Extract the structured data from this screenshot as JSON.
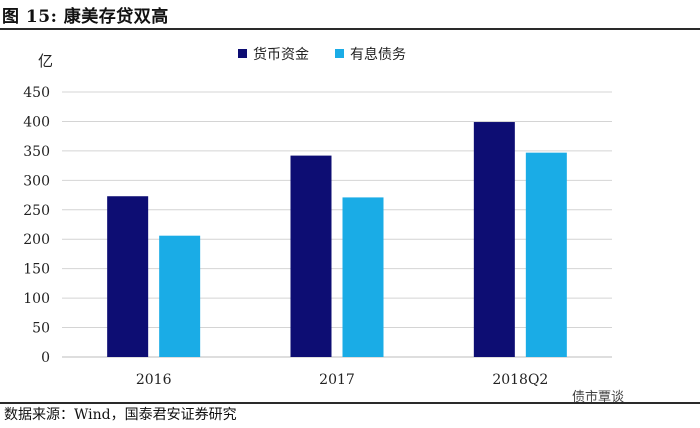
{
  "figure": {
    "title": "图 15: 康美存贷双高",
    "source": "数据来源：Wind，国泰君安证券研究",
    "watermark": "债市覃谈"
  },
  "chart_data": {
    "type": "bar",
    "categories": [
      "2016",
      "2017",
      "2018Q2"
    ],
    "series": [
      {
        "name": "货币资金",
        "values": [
          273,
          342,
          399
        ],
        "color": "#0d0d73"
      },
      {
        "name": "有息债务",
        "values": [
          206,
          271,
          347
        ],
        "color": "#1aace6"
      }
    ],
    "ylabel": "亿",
    "ylim": [
      0,
      450
    ],
    "yticks": [
      0,
      50,
      100,
      150,
      200,
      250,
      300,
      350,
      400,
      450
    ],
    "grid": true,
    "legend": "top-center"
  }
}
